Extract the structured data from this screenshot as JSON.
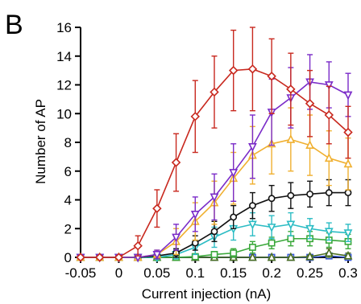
{
  "panel_label": "B",
  "chart_data": {
    "type": "line",
    "xlabel": "Current injection (nA)",
    "ylabel": "Number of AP",
    "xlim": [
      -0.05,
      0.3
    ],
    "ylim": [
      0,
      16
    ],
    "x_ticks": [
      "-0.05",
      "0",
      "0.05",
      "0.1",
      "0.15",
      "0.2",
      "0.25",
      "0.3"
    ],
    "y_ticks": [
      "0",
      "2",
      "4",
      "6",
      "8",
      "10",
      "12",
      "14",
      "16"
    ],
    "grid": false,
    "legend": "none",
    "x": [
      -0.05,
      -0.025,
      0,
      0.025,
      0.05,
      0.075,
      0.1,
      0.125,
      0.15,
      0.175,
      0.2,
      0.225,
      0.25,
      0.275,
      0.3
    ],
    "series": [
      {
        "color": "#c8281e",
        "marker": "diamond",
        "values": [
          0,
          0,
          0,
          0.8,
          3.4,
          6.6,
          9.8,
          11.5,
          13.0,
          13.1,
          12.6,
          11.7,
          10.7,
          9.9,
          8.7
        ],
        "errors": [
          0,
          0,
          0,
          0.7,
          1.3,
          2.0,
          2.5,
          2.5,
          2.8,
          2.9,
          2.6,
          2.5,
          2.3,
          2.0,
          1.8
        ]
      },
      {
        "color": "#7a2bc8",
        "marker": "triangle-down",
        "values": [
          0,
          0,
          0,
          0,
          0.2,
          1.4,
          3.0,
          4.2,
          5.9,
          7.7,
          10.1,
          11.1,
          12.2,
          12.0,
          11.3
        ],
        "errors": [
          0,
          0,
          0,
          0,
          0.3,
          0.9,
          1.2,
          1.6,
          2.0,
          2.2,
          2.3,
          2.1,
          1.9,
          1.6,
          1.5
        ]
      },
      {
        "color": "#f0b030",
        "marker": "triangle-up",
        "values": [
          0,
          0,
          0,
          0,
          0.2,
          1.1,
          2.5,
          3.8,
          5.5,
          7.1,
          7.9,
          8.2,
          7.8,
          6.9,
          6.5
        ],
        "errors": [
          0,
          0,
          0,
          0,
          0.3,
          0.9,
          1.3,
          1.5,
          1.8,
          2.0,
          2.1,
          2.2,
          2.1,
          1.9,
          1.8
        ]
      },
      {
        "color": "#111111",
        "marker": "circle",
        "values": [
          0,
          0,
          0,
          0,
          0.1,
          0.3,
          1.0,
          1.8,
          2.8,
          3.6,
          4.1,
          4.3,
          4.4,
          4.5,
          4.5
        ],
        "errors": [
          0,
          0,
          0,
          0,
          0.1,
          0.3,
          0.5,
          0.7,
          0.8,
          0.9,
          0.9,
          0.9,
          0.9,
          0.9,
          0.9
        ]
      },
      {
        "color": "#2cbcc4",
        "marker": "triangle-down",
        "values": [
          0,
          0,
          0,
          0,
          0,
          0.2,
          0.7,
          1.4,
          2.0,
          2.3,
          2.1,
          2.3,
          2.0,
          1.8,
          1.7
        ],
        "errors": [
          0,
          0,
          0,
          0,
          0,
          0.3,
          0.5,
          0.7,
          0.8,
          0.8,
          0.8,
          0.8,
          0.7,
          0.6,
          0.6
        ]
      },
      {
        "color": "#3aa83a",
        "marker": "square",
        "values": [
          0,
          0,
          0,
          0,
          0,
          0,
          0.05,
          0.2,
          0.3,
          0.7,
          1.0,
          1.3,
          1.3,
          1.2,
          1.1
        ],
        "errors": [
          0,
          0,
          0,
          0,
          0,
          0,
          0.1,
          0.2,
          0.3,
          0.4,
          0.4,
          0.5,
          0.5,
          0.5,
          0.5
        ]
      },
      {
        "color": "#4a6e1e",
        "marker": "triangle-up",
        "values": [
          0,
          0,
          0,
          0,
          0,
          0,
          0,
          0,
          0,
          0,
          0,
          0,
          0.05,
          0.3,
          0.1
        ],
        "errors": [
          0,
          0,
          0,
          0,
          0,
          0,
          0,
          0,
          0,
          0,
          0,
          0,
          0.1,
          0.3,
          0.2
        ]
      },
      {
        "color": "#3a5ad8",
        "marker": "square",
        "values": [
          0,
          0,
          0,
          0,
          0,
          0,
          0,
          0,
          0,
          0,
          0,
          0,
          0,
          0.1,
          0
        ],
        "errors": [
          0,
          0,
          0,
          0,
          0,
          0,
          0,
          0,
          0,
          0,
          0,
          0,
          0,
          0.2,
          0.1
        ]
      }
    ]
  }
}
